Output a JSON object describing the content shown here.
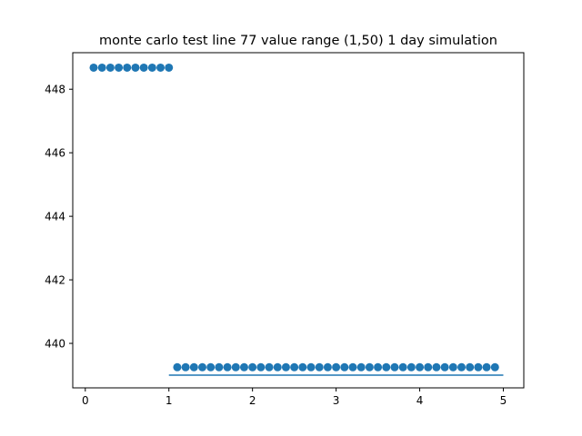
{
  "chart_data": {
    "type": "scatter",
    "title": "monte carlo test line 77 value range (1,50) 1 day simulation",
    "xlabel": "",
    "ylabel": "",
    "xlim": [
      -0.15,
      5.245
    ],
    "ylim": [
      438.6,
      449.15
    ],
    "xticks": [
      0,
      1,
      2,
      3,
      4,
      5
    ],
    "yticks": [
      440,
      442,
      444,
      446,
      448
    ],
    "grid": false,
    "colors": {
      "series": "#1f77b4",
      "axes": "#000000",
      "background": "#ffffff"
    },
    "series": [
      {
        "kind": "scatter",
        "x": [
          0.1,
          0.2,
          0.3,
          0.4,
          0.5,
          0.6,
          0.7,
          0.8,
          0.9,
          1.0
        ],
        "y": [
          448.68,
          448.68,
          448.68,
          448.68,
          448.68,
          448.68,
          448.68,
          448.68,
          448.68,
          448.68
        ]
      },
      {
        "kind": "scatter",
        "x": [
          1.1,
          1.2,
          1.3,
          1.4,
          1.5,
          1.6,
          1.7,
          1.8,
          1.9,
          2.0,
          2.1,
          2.2,
          2.3,
          2.4,
          2.5,
          2.6,
          2.7,
          2.8,
          2.9,
          3.0,
          3.1,
          3.2,
          3.3,
          3.4,
          3.5,
          3.6,
          3.7,
          3.8,
          3.9,
          4.0,
          4.1,
          4.2,
          4.3,
          4.4,
          4.5,
          4.6,
          4.7,
          4.8,
          4.9
        ],
        "y": [
          439.25,
          439.25,
          439.25,
          439.25,
          439.25,
          439.25,
          439.25,
          439.25,
          439.25,
          439.25,
          439.25,
          439.25,
          439.25,
          439.25,
          439.25,
          439.25,
          439.25,
          439.25,
          439.25,
          439.25,
          439.25,
          439.25,
          439.25,
          439.25,
          439.25,
          439.25,
          439.25,
          439.25,
          439.25,
          439.25,
          439.25,
          439.25,
          439.25,
          439.25,
          439.25,
          439.25,
          439.25,
          439.25,
          439.25
        ]
      },
      {
        "kind": "line",
        "x": [
          1.0,
          5.0
        ],
        "y": [
          439.0,
          439.0
        ]
      }
    ]
  }
}
